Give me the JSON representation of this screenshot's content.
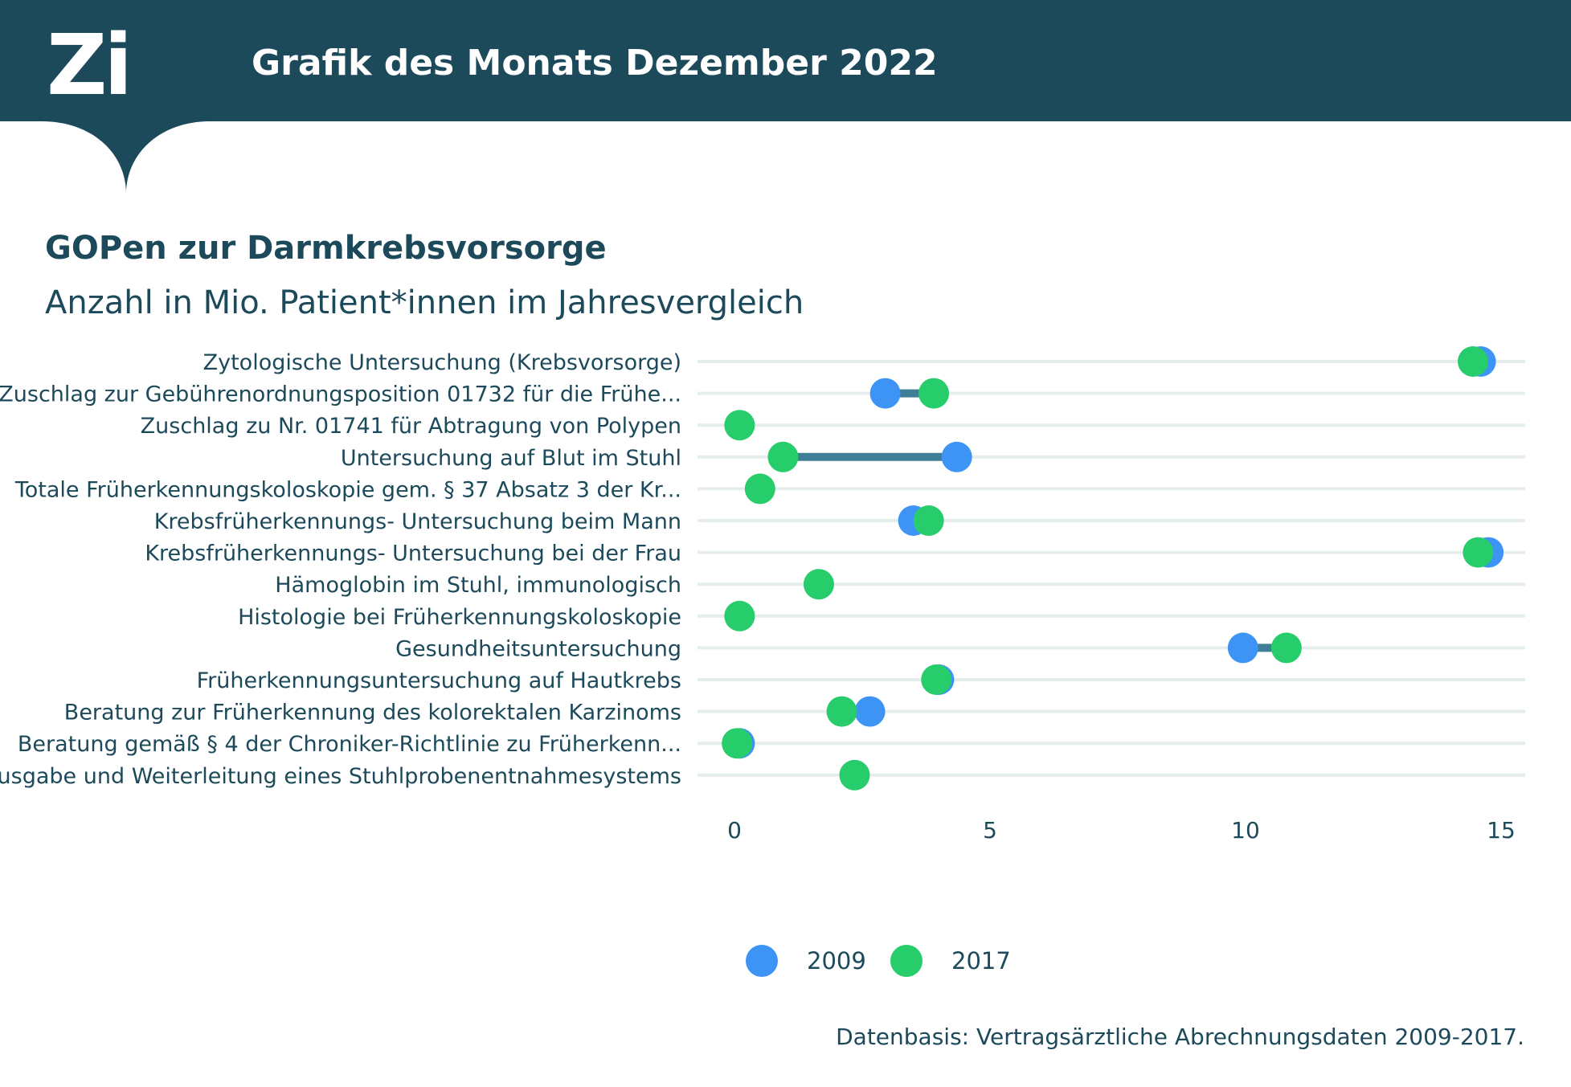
{
  "header": {
    "logo_text": "Zi",
    "title": "Grafik des Monats Dezember 2022"
  },
  "chart_data": {
    "type": "scatter",
    "title": "GOPen zur Darmkrebsvorsorge",
    "subtitle": "Anzahl in Mio. Patient*innen im Jahresvergleich",
    "xlabel": "",
    "ylabel": "",
    "xlim": [
      0,
      15
    ],
    "x_ticks": [
      "0",
      "5",
      "10",
      "15"
    ],
    "grid": "horizontal",
    "legend_position": "bottom",
    "categories": [
      "Zytologische Untersuchung (Krebsvorsorge)",
      "Zuschlag zur Gebührenordnungsposition 01732 für die Frühe...",
      "Zuschlag zu Nr. 01741 für Abtragung von Polypen",
      "Untersuchung auf Blut im Stuhl",
      "Totale Früherkennungskoloskopie gem. § 37 Absatz 3 der Kr...",
      "Krebsfrüherkennungs- Untersuchung beim Mann",
      "Krebsfrüherkennungs- Untersuchung bei der Frau",
      "Hämoglobin im Stuhl, immunologisch",
      "Histologie bei Früherkennungskoloskopie",
      "Gesundheitsuntersuchung",
      "Früherkennungsuntersuchung auf Hautkrebs",
      "Beratung zur Früherkennung des kolorektalen Karzinoms",
      "Beratung gemäß § 4 der Chroniker-Richtlinie zu Früherkenn...",
      "Ausgabe und Weiterleitung eines Stuhlprobenentnahmesystems"
    ],
    "series": [
      {
        "name": "2009",
        "color": "#3d94f5",
        "values": [
          14.6,
          2.95,
          null,
          4.35,
          null,
          3.5,
          14.75,
          null,
          null,
          9.95,
          4.0,
          2.65,
          0.1,
          null
        ]
      },
      {
        "name": "2017",
        "color": "#27cc6b",
        "values": [
          14.45,
          3.9,
          0.1,
          0.95,
          0.5,
          3.8,
          14.55,
          1.65,
          0.1,
          10.8,
          3.95,
          2.1,
          0.05,
          2.35
        ]
      }
    ],
    "connector_color": "#3f7f95"
  },
  "footer": {
    "source": "Datenbasis: Vertragsärztliche Abrechnungsdaten 2009-2017."
  },
  "colors": {
    "header_bg": "#1c4a5b",
    "text_dark": "#1c4a5b",
    "grid": "#e6eded"
  }
}
